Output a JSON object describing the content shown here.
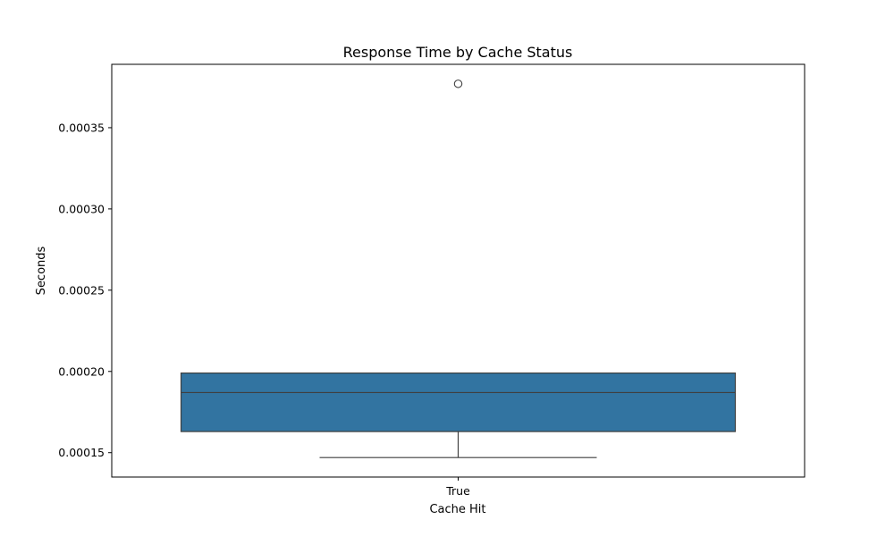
{
  "chart_data": {
    "type": "box",
    "title": "Response Time by Cache Status",
    "xlabel": "Cache Hit",
    "ylabel": "Seconds",
    "categories": [
      "True"
    ],
    "boxes": [
      {
        "category": "True",
        "whisker_low": 0.000147,
        "q1": 0.000163,
        "median": 0.000187,
        "q3": 0.000199,
        "whisker_high": 0.000199,
        "outliers": [
          0.000377
        ]
      }
    ],
    "y_ticks": [
      {
        "value": 0.00015,
        "label": "0.00015"
      },
      {
        "value": 0.0002,
        "label": "0.00020"
      },
      {
        "value": 0.00025,
        "label": "0.00025"
      },
      {
        "value": 0.0003,
        "label": "0.00030"
      },
      {
        "value": 0.00035,
        "label": "0.00035"
      }
    ],
    "ylim": [
      0.000135,
      0.000389
    ],
    "grid": false,
    "colors": {
      "box_fill": "#3274a1",
      "line": "#3f3f3f",
      "frame": "#000000"
    }
  }
}
